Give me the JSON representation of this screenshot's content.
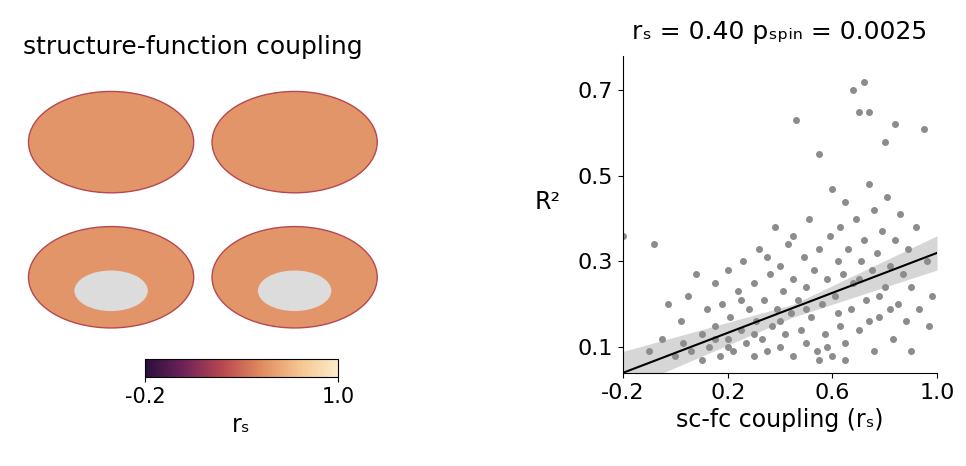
{
  "chart_data": [
    {
      "type": "surface_map",
      "title": "structure-function coupling",
      "colorbar": {
        "label": "rₛ",
        "range": [
          -0.2,
          1.0
        ],
        "ticks": [
          -0.2,
          1.0
        ]
      }
    },
    {
      "type": "scatter",
      "title": "rₛ = 0.40 pₛₚᵢₙ = 0.0025",
      "x_label": "sc-fc coupling (rₛ)",
      "y_label": "R²",
      "color": "#8c8c8c",
      "xlim": [
        -0.2,
        1.0
      ],
      "xticks": [
        -0.2,
        0.2,
        0.6,
        1.0
      ],
      "ylim": [
        0.04,
        0.78
      ],
      "yticks": [
        0.1,
        0.3,
        0.5,
        0.7
      ],
      "x": [
        -0.2,
        -0.1,
        -0.08,
        -0.05,
        -0.03,
        0.0,
        0.02,
        0.03,
        0.05,
        0.06,
        0.08,
        0.1,
        0.1,
        0.12,
        0.13,
        0.15,
        0.15,
        0.17,
        0.18,
        0.2,
        0.2,
        0.21,
        0.22,
        0.24,
        0.25,
        0.26,
        0.27,
        0.28,
        0.3,
        0.3,
        0.31,
        0.32,
        0.33,
        0.34,
        0.35,
        0.36,
        0.37,
        0.38,
        0.39,
        0.4,
        0.4,
        0.41,
        0.42,
        0.43,
        0.44,
        0.45,
        0.45,
        0.46,
        0.47,
        0.48,
        0.49,
        0.5,
        0.5,
        0.51,
        0.52,
        0.53,
        0.54,
        0.55,
        0.55,
        0.56,
        0.57,
        0.58,
        0.59,
        0.6,
        0.6,
        0.61,
        0.62,
        0.63,
        0.63,
        0.64,
        0.65,
        0.65,
        0.66,
        0.67,
        0.68,
        0.68,
        0.69,
        0.7,
        0.7,
        0.71,
        0.72,
        0.72,
        0.73,
        0.74,
        0.74,
        0.75,
        0.76,
        0.76,
        0.77,
        0.78,
        0.79,
        0.8,
        0.8,
        0.81,
        0.82,
        0.83,
        0.84,
        0.84,
        0.85,
        0.86,
        0.87,
        0.88,
        0.89,
        0.9,
        0.9,
        0.92,
        0.93,
        0.95,
        0.96,
        0.97,
        0.98,
        0.2,
        0.3,
        0.4,
        0.5,
        0.55,
        0.65,
        0.45,
        0.35,
        0.25,
        0.15,
        0.58,
        0.62,
        0.7,
        0.74,
        0.78,
        0.82
      ],
      "y": [
        0.36,
        0.09,
        0.34,
        0.12,
        0.2,
        0.08,
        0.16,
        0.11,
        0.22,
        0.09,
        0.27,
        0.13,
        0.07,
        0.19,
        0.1,
        0.25,
        0.15,
        0.08,
        0.2,
        0.12,
        0.28,
        0.17,
        0.09,
        0.23,
        0.14,
        0.3,
        0.11,
        0.19,
        0.08,
        0.25,
        0.16,
        0.33,
        0.12,
        0.21,
        0.09,
        0.27,
        0.15,
        0.38,
        0.19,
        0.1,
        0.29,
        0.23,
        0.13,
        0.34,
        0.18,
        0.08,
        0.26,
        0.63,
        0.21,
        0.14,
        0.31,
        0.11,
        0.24,
        0.4,
        0.17,
        0.28,
        0.09,
        0.55,
        0.33,
        0.2,
        0.13,
        0.26,
        0.36,
        0.08,
        0.47,
        0.22,
        0.3,
        0.15,
        0.38,
        0.27,
        0.11,
        0.44,
        0.33,
        0.19,
        0.7,
        0.25,
        0.4,
        0.65,
        0.14,
        0.3,
        0.72,
        0.35,
        0.21,
        0.65,
        0.48,
        0.28,
        0.09,
        0.42,
        0.32,
        0.17,
        0.37,
        0.24,
        0.58,
        0.45,
        0.29,
        0.12,
        0.62,
        0.35,
        0.2,
        0.41,
        0.27,
        0.16,
        0.33,
        0.09,
        0.24,
        0.38,
        0.19,
        0.61,
        0.3,
        0.15,
        0.22,
        0.1,
        0.13,
        0.16,
        0.19,
        0.07,
        0.07,
        0.36,
        0.31,
        0.21,
        0.12,
        0.1,
        0.18,
        0.26,
        0.16,
        0.22,
        0.19
      ],
      "fit": {
        "x": [
          -0.2,
          1.0
        ],
        "y": [
          0.04,
          0.32
        ]
      },
      "band": {
        "x": [
          -0.2,
          0.45,
          1.0
        ],
        "lower": [
          0.0,
          0.17,
          0.28
        ],
        "upper": [
          0.09,
          0.2,
          0.36
        ]
      }
    }
  ]
}
